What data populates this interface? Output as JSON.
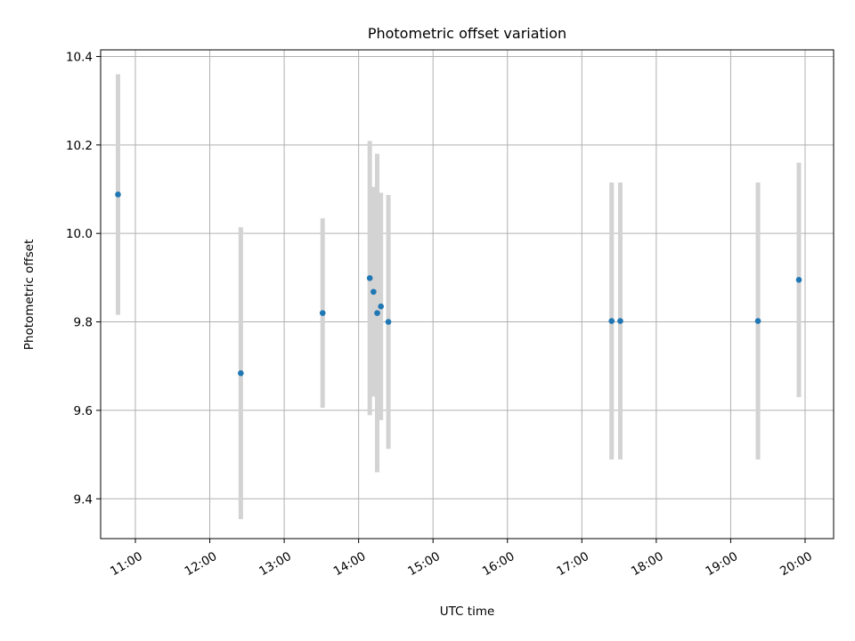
{
  "chart_data": {
    "type": "scatter",
    "title": "Photometric offset variation",
    "xlabel": "UTC time",
    "ylabel": "Photometric offset",
    "x_is_time": true,
    "xlim": [
      "10:32",
      "20:23"
    ],
    "ylim": [
      9.31,
      10.415
    ],
    "x_ticks": [
      "11:00",
      "12:00",
      "13:00",
      "14:00",
      "15:00",
      "16:00",
      "17:00",
      "18:00",
      "19:00",
      "20:00"
    ],
    "y_ticks": [
      9.4,
      9.6,
      9.8,
      10.0,
      10.2,
      10.4
    ],
    "y_tick_labels": [
      "9.4",
      "9.6",
      "9.8",
      "10.0",
      "10.2",
      "10.4"
    ],
    "grid": true,
    "colors": {
      "point": "#1f77b4",
      "errorbar": "#d3d3d3",
      "grid": "#b0b0b0",
      "axis": "#000000"
    },
    "points": [
      {
        "x": "10:46",
        "y": 10.088,
        "yerr": 0.272
      },
      {
        "x": "12:25",
        "y": 9.684,
        "yerr": 0.33
      },
      {
        "x": "13:31",
        "y": 9.82,
        "yerr": 0.214
      },
      {
        "x": "14:09",
        "y": 9.899,
        "yerr": 0.31
      },
      {
        "x": "14:12",
        "y": 9.868,
        "yerr": 0.237
      },
      {
        "x": "14:15",
        "y": 9.82,
        "yerr": 0.36
      },
      {
        "x": "14:18",
        "y": 9.835,
        "yerr": 0.257
      },
      {
        "x": "14:24",
        "y": 9.8,
        "yerr": 0.287
      },
      {
        "x": "17:24",
        "y": 9.802,
        "yerr": 0.313
      },
      {
        "x": "17:31",
        "y": 9.802,
        "yerr": 0.313
      },
      {
        "x": "19:22",
        "y": 9.802,
        "yerr": 0.313
      },
      {
        "x": "19:55",
        "y": 9.895,
        "yerr": 0.265
      }
    ]
  }
}
